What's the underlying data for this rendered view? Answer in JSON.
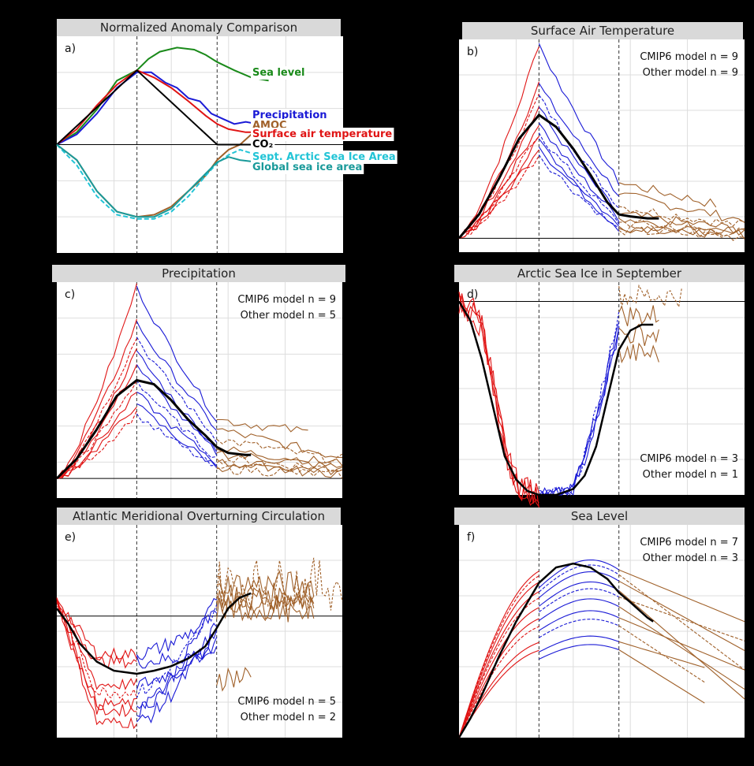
{
  "figure": {
    "background": "#000000"
  },
  "colors": {
    "sea_level": "#1a8a1a",
    "precipitation": "#1a1ad6",
    "amoc": "#a0612a",
    "surface_air_temperature": "#e01414",
    "co2": "#000000",
    "arctic_ice": "#22c4d6",
    "global_ice": "#1a9a9a",
    "ramp_up": "#e01414",
    "ramp_down": "#1a1ad6",
    "stabilization": "#a0612a",
    "mean": "#000000"
  },
  "chart_data": [
    {
      "id": "a",
      "type": "line",
      "title": "Normalized Anomaly Comparison",
      "letter": "a)",
      "xlim": [
        0,
        100
      ],
      "ylim": [
        -1.05,
        1.05
      ],
      "phase_lines": [
        28,
        56
      ],
      "zero_line": true,
      "grid": true,
      "series": [
        {
          "name": "Sea level",
          "color": "sea_level",
          "dashed": false,
          "x": [
            0,
            7,
            14,
            21,
            28,
            32,
            36,
            42,
            48,
            52,
            56,
            62,
            68,
            74
          ],
          "y": [
            0,
            0.12,
            0.34,
            0.62,
            0.72,
            0.83,
            0.9,
            0.94,
            0.92,
            0.87,
            0.8,
            0.72,
            0.65,
            0.62
          ]
        },
        {
          "name": "Precipitation",
          "color": "precipitation",
          "dashed": false,
          "x": [
            0,
            7,
            14,
            21,
            28,
            33,
            38,
            42,
            46,
            50,
            54,
            58,
            62,
            66,
            70,
            74
          ],
          "y": [
            0,
            0.1,
            0.3,
            0.55,
            0.7,
            0.7,
            0.6,
            0.55,
            0.45,
            0.42,
            0.3,
            0.25,
            0.2,
            0.22,
            0.2,
            0.2
          ]
        },
        {
          "name": "AMOC",
          "color": "amoc",
          "dashed": false,
          "x": [
            0,
            7,
            14,
            21,
            28,
            34,
            40,
            46,
            52,
            56,
            60,
            64,
            68,
            72,
            74
          ],
          "y": [
            0,
            -0.15,
            -0.45,
            -0.65,
            -0.7,
            -0.68,
            -0.6,
            -0.45,
            -0.3,
            -0.15,
            -0.05,
            0.0,
            0.1,
            0.18,
            0.22
          ]
        },
        {
          "name": "Surface air temperature",
          "color": "surface_air_temperature",
          "dashed": false,
          "x": [
            0,
            7,
            14,
            21,
            28,
            34,
            40,
            46,
            52,
            56,
            60,
            66,
            74
          ],
          "y": [
            0,
            0.15,
            0.38,
            0.58,
            0.72,
            0.65,
            0.55,
            0.42,
            0.28,
            0.2,
            0.15,
            0.12,
            0.12
          ]
        },
        {
          "name": "CO₂",
          "color": "co2",
          "dashed": false,
          "x": [
            0,
            28,
            56,
            74
          ],
          "y": [
            0,
            0.72,
            0,
            0
          ]
        },
        {
          "name": "Sept. Arctic Sea Ice Area",
          "color": "arctic_ice",
          "dashed": true,
          "x": [
            0,
            7,
            14,
            21,
            28,
            34,
            40,
            46,
            52,
            56,
            60,
            64,
            70,
            74
          ],
          "y": [
            0,
            -0.2,
            -0.5,
            -0.68,
            -0.72,
            -0.72,
            -0.65,
            -0.5,
            -0.3,
            -0.18,
            -0.1,
            -0.05,
            -0.1,
            -0.12
          ]
        },
        {
          "name": "Global sea ice area",
          "color": "global_ice",
          "dashed": false,
          "x": [
            0,
            7,
            14,
            21,
            28,
            34,
            40,
            46,
            52,
            56,
            60,
            64,
            70,
            74
          ],
          "y": [
            0,
            -0.15,
            -0.45,
            -0.65,
            -0.7,
            -0.7,
            -0.62,
            -0.45,
            -0.28,
            -0.17,
            -0.12,
            -0.15,
            -0.17,
            -0.17
          ]
        }
      ]
    },
    {
      "id": "b",
      "type": "line",
      "title": "Surface Air Temperature",
      "letter": "b)",
      "counts": [
        "CMIP6 model n = 9",
        "Other model n = 9"
      ],
      "xlim": [
        0,
        100
      ],
      "ylim": [
        -0.07,
        1.0
      ],
      "phase_lines": [
        28,
        56
      ],
      "zero_line": true,
      "grid": true,
      "ensemble": {
        "ramp_up_end": [
          0.98,
          0.78,
          0.72,
          0.66,
          0.58,
          0.53,
          0.5,
          0.46,
          0.42
        ],
        "ramp_down_end": [
          0.28,
          0.22,
          0.16,
          0.12,
          0.1,
          0.08,
          0.06,
          0.05,
          0.04
        ],
        "stab_end": [
          0.15,
          0.1,
          0.07,
          0.05,
          0.04,
          0.03,
          0.02,
          0.02,
          0.01
        ],
        "stab_x_end": [
          90,
          100,
          100,
          100,
          100,
          100,
          100,
          92,
          100
        ]
      },
      "mean": {
        "x": [
          0,
          7,
          14,
          21,
          28,
          34,
          40,
          46,
          52,
          56,
          60,
          66,
          70
        ],
        "y": [
          0,
          0.12,
          0.3,
          0.5,
          0.62,
          0.56,
          0.45,
          0.32,
          0.18,
          0.12,
          0.11,
          0.1,
          0.1
        ]
      }
    },
    {
      "id": "c",
      "type": "line",
      "title": "Precipitation",
      "letter": "c)",
      "counts": [
        "CMIP6 model n = 9",
        "Other model n = 5"
      ],
      "xlim": [
        0,
        100
      ],
      "ylim": [
        -0.1,
        1.0
      ],
      "phase_lines": [
        28,
        56
      ],
      "zero_line": true,
      "grid": true,
      "ensemble": {
        "ramp_up_end": [
          0.98,
          0.8,
          0.72,
          0.65,
          0.58,
          0.5,
          0.44,
          0.38,
          0.33
        ],
        "ramp_down_end": [
          0.3,
          0.25,
          0.2,
          0.15,
          0.13,
          0.1,
          0.08,
          0.06,
          0.05
        ],
        "stab_end": [
          0.22,
          0.12,
          0.1,
          0.08,
          0.06,
          0.05,
          0.04,
          0.03,
          0.02
        ],
        "stab_x_end": [
          88,
          100,
          100,
          100,
          100,
          100,
          100,
          100,
          100
        ]
      },
      "mean": {
        "x": [
          0,
          7,
          14,
          21,
          28,
          34,
          40,
          46,
          52,
          56,
          60,
          66,
          68
        ],
        "y": [
          0,
          0.1,
          0.25,
          0.42,
          0.5,
          0.48,
          0.4,
          0.3,
          0.22,
          0.16,
          0.13,
          0.12,
          0.12
        ]
      }
    },
    {
      "id": "d",
      "type": "line",
      "title": "Arctic Sea Ice in September",
      "letter": "d)",
      "counts": [
        "CMIP6 model n = 3",
        "Other model n = 1"
      ],
      "xlim": [
        0,
        100
      ],
      "ylim": [
        -1.0,
        0.1
      ],
      "phase_lines": [
        28,
        56
      ],
      "zero_line": true,
      "grid": true,
      "mean": {
        "x": [
          0,
          4,
          8,
          12,
          16,
          20,
          24,
          28,
          34,
          40,
          44,
          48,
          52,
          56,
          60,
          64,
          68
        ],
        "y": [
          0,
          -0.1,
          -0.3,
          -0.55,
          -0.8,
          -0.92,
          -0.98,
          -1.0,
          -1.0,
          -0.97,
          -0.9,
          -0.75,
          -0.5,
          -0.25,
          -0.15,
          -0.12,
          -0.12
        ]
      }
    },
    {
      "id": "e",
      "type": "line",
      "title": "Atlantic Meridional Overturning Circulation",
      "letter": "e)",
      "counts": [
        "CMIP6 model n = 5",
        "Other model n = 2"
      ],
      "xlim": [
        0,
        100
      ],
      "ylim": [
        -0.8,
        0.6
      ],
      "phase_lines": [
        28,
        56
      ],
      "zero_line": true,
      "grid": true,
      "mean": {
        "x": [
          0,
          4,
          8,
          14,
          20,
          28,
          34,
          40,
          46,
          52,
          56,
          60,
          64,
          68
        ],
        "y": [
          0.05,
          -0.05,
          -0.18,
          -0.3,
          -0.36,
          -0.38,
          -0.36,
          -0.33,
          -0.28,
          -0.2,
          -0.08,
          0.05,
          0.12,
          0.15
        ]
      }
    },
    {
      "id": "f",
      "type": "line",
      "title": "Sea Level",
      "letter": "f)",
      "counts": [
        "CMIP6 model n = 7",
        "Other model n = 3"
      ],
      "xlim": [
        0,
        100
      ],
      "ylim": [
        0,
        1.1
      ],
      "phase_lines": [
        28,
        56
      ],
      "zero_line": false,
      "grid": true,
      "mean": {
        "x": [
          0,
          4,
          8,
          14,
          20,
          28,
          34,
          40,
          46,
          52,
          56,
          60,
          66,
          68
        ],
        "y": [
          0,
          0.1,
          0.22,
          0.42,
          0.6,
          0.8,
          0.88,
          0.9,
          0.88,
          0.82,
          0.75,
          0.7,
          0.62,
          0.6
        ]
      }
    }
  ]
}
